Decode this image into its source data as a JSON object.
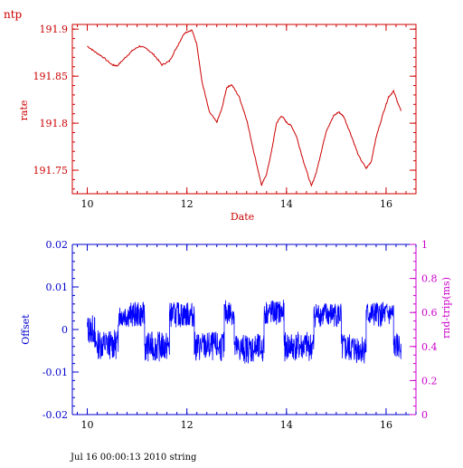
{
  "header_label": "ntp",
  "footer_text": "Jul 16 00:00:13 2010 string",
  "colors": {
    "top_axis": "#cc0000",
    "top_line": "#cc0000",
    "bottom_axis_left": "#0000cc",
    "bottom_line": "#0000ff",
    "bottom_axis_right": "#cc00cc"
  },
  "chart_data": [
    {
      "type": "line",
      "name": "rate",
      "xlabel": "Date",
      "ylabel": "rate",
      "xlim": [
        9.7,
        16.6
      ],
      "ylim": [
        191.725,
        191.905
      ],
      "xticks": [
        10,
        12,
        14,
        16
      ],
      "yticks": [
        191.75,
        191.8,
        191.85,
        191.9
      ],
      "ytick_labels": [
        "191.75",
        "191.8",
        "191.85",
        "191.9"
      ],
      "grid": false,
      "x": [
        10.0,
        10.15,
        10.3,
        10.5,
        10.6,
        10.75,
        10.9,
        11.05,
        11.2,
        11.35,
        11.5,
        11.65,
        11.8,
        11.95,
        12.1,
        12.2,
        12.3,
        12.45,
        12.6,
        12.7,
        12.8,
        12.9,
        13.05,
        13.2,
        13.35,
        13.5,
        13.6,
        13.7,
        13.8,
        13.9,
        14.0,
        14.1,
        14.2,
        14.35,
        14.5,
        14.6,
        14.7,
        14.8,
        14.95,
        15.05,
        15.15,
        15.3,
        15.45,
        15.6,
        15.7,
        15.8,
        15.95,
        16.05,
        16.15,
        16.3
      ],
      "y": [
        191.882,
        191.876,
        191.871,
        191.862,
        191.861,
        191.869,
        191.877,
        191.882,
        191.879,
        191.872,
        191.862,
        191.866,
        191.881,
        191.896,
        191.899,
        191.884,
        191.845,
        191.812,
        191.801,
        191.815,
        191.838,
        191.841,
        191.828,
        191.804,
        191.768,
        191.734,
        191.746,
        191.77,
        191.8,
        191.808,
        191.801,
        191.797,
        191.786,
        191.758,
        191.733,
        191.748,
        191.77,
        191.792,
        191.808,
        191.812,
        191.807,
        191.787,
        191.765,
        191.752,
        191.759,
        191.785,
        191.812,
        191.828,
        191.834,
        191.813
      ]
    },
    {
      "type": "line",
      "name": "Offset",
      "ylabel": "Offset",
      "y2label": "rnd-trip(ms)",
      "xlim": [
        9.7,
        16.6
      ],
      "ylim": [
        -0.02,
        0.02
      ],
      "y2lim": [
        0,
        1
      ],
      "xticks": [
        10,
        12,
        14,
        16
      ],
      "yticks": [
        -0.02,
        -0.01,
        0,
        0.01,
        0.02
      ],
      "ytick_labels": [
        "-0.02",
        "-0.01",
        "0",
        "0.01",
        "0.02"
      ],
      "y2ticks": [
        0,
        0.2,
        0.4,
        0.6,
        0.8,
        1
      ],
      "y2tick_labels": [
        "0",
        "0.2",
        "0.4",
        "0.6",
        "0.8",
        "1"
      ],
      "grid": false,
      "segments": [
        {
          "x0": 10.0,
          "x1": 10.15,
          "center": 0.0,
          "amp": 0.0035
        },
        {
          "x0": 10.15,
          "x1": 10.62,
          "center": -0.0035,
          "amp": 0.0035
        },
        {
          "x0": 10.62,
          "x1": 11.15,
          "center": 0.0035,
          "amp": 0.003
        },
        {
          "x0": 11.15,
          "x1": 11.65,
          "center": -0.004,
          "amp": 0.0035
        },
        {
          "x0": 11.65,
          "x1": 12.15,
          "center": 0.0035,
          "amp": 0.003
        },
        {
          "x0": 12.15,
          "x1": 12.75,
          "center": -0.004,
          "amp": 0.0035
        },
        {
          "x0": 12.75,
          "x1": 12.95,
          "center": 0.004,
          "amp": 0.003
        },
        {
          "x0": 12.95,
          "x1": 13.55,
          "center": -0.0045,
          "amp": 0.0035
        },
        {
          "x0": 13.55,
          "x1": 13.95,
          "center": 0.004,
          "amp": 0.003
        },
        {
          "x0": 13.95,
          "x1": 14.55,
          "center": -0.004,
          "amp": 0.0035
        },
        {
          "x0": 14.55,
          "x1": 15.1,
          "center": 0.0035,
          "amp": 0.003
        },
        {
          "x0": 15.1,
          "x1": 15.6,
          "center": -0.0045,
          "amp": 0.0035
        },
        {
          "x0": 15.6,
          "x1": 16.15,
          "center": 0.0035,
          "amp": 0.003
        },
        {
          "x0": 16.15,
          "x1": 16.3,
          "center": -0.004,
          "amp": 0.003
        }
      ]
    }
  ]
}
